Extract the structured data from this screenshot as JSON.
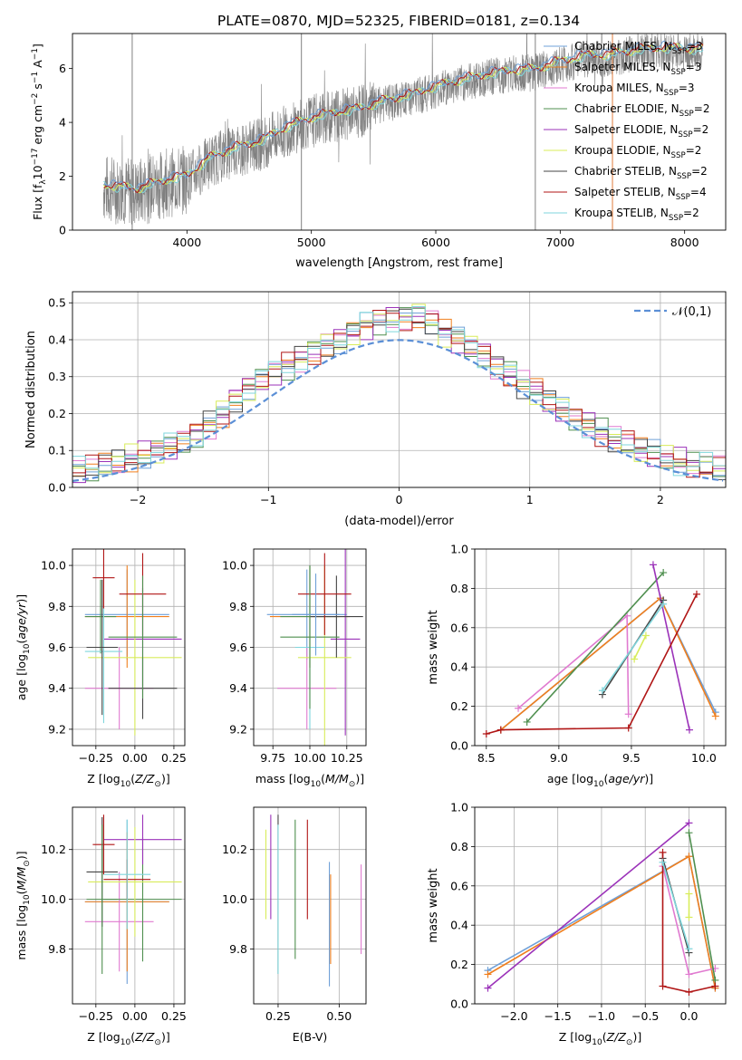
{
  "figure_title": "PLATE=0870, MJD=52325, FIBERID=0181, z=0.134",
  "colors": {
    "grid": "#b0b0b0",
    "data": "#808080",
    "gaussian": "#5b8fd6",
    "models": [
      "#6fa0d8",
      "#f07f1e",
      "#e07ad0",
      "#4f8f4f",
      "#9b32b9",
      "#d8ec5a",
      "#444444",
      "#b01515",
      "#7fd6dc"
    ]
  },
  "chart_data": [
    {
      "id": "spectrum",
      "type": "line",
      "title": "PLATE=0870, MJD=52325, FIBERID=0181, z=0.134",
      "xlabel": "wavelength [Angstrom, rest frame]",
      "ylabel_parts": [
        "Flux [f",
        "λ",
        "10",
        "−17",
        " erg cm",
        "−2",
        " s",
        "−1",
        " A",
        "−1",
        "]"
      ],
      "xlim": [
        3080,
        8330
      ],
      "ylim": [
        0,
        7.3
      ],
      "xticks": [
        4000,
        5000,
        6000,
        7000,
        8000
      ],
      "yticks": [
        0,
        2,
        4,
        6
      ],
      "grid": false,
      "legend_position": "upper-right",
      "legend": [
        {
          "text_a": "Chabrier MILES, N",
          "sub": "SSP",
          "text_b": "=3",
          "color_index": 0
        },
        {
          "text_a": "Salpeter MILES, N",
          "sub": "SSP",
          "text_b": "=3",
          "color_index": 1
        },
        {
          "text_a": "Kroupa MILES, N",
          "sub": "SSP",
          "text_b": "=3",
          "color_index": 2
        },
        {
          "text_a": "Chabrier ELODIE, N",
          "sub": "SSP",
          "text_b": "=2",
          "color_index": 3
        },
        {
          "text_a": "Salpeter ELODIE, N",
          "sub": "SSP",
          "text_b": "=2",
          "color_index": 4
        },
        {
          "text_a": "Kroupa ELODIE, N",
          "sub": "SSP",
          "text_b": "=2",
          "color_index": 5
        },
        {
          "text_a": "Chabrier STELIB, N",
          "sub": "SSP",
          "text_b": "=2",
          "color_index": 6
        },
        {
          "text_a": "Salpeter STELIB, N",
          "sub": "SSP",
          "text_b": "=4",
          "color_index": 7
        },
        {
          "text_a": "Kroupa STELIB, N",
          "sub": "SSP",
          "text_b": "=2",
          "color_index": 8
        }
      ],
      "observed_range": [
        3330,
        8150
      ],
      "model_continuum": [
        [
          3330,
          1.7
        ],
        [
          3600,
          1.55
        ],
        [
          3800,
          1.85
        ],
        [
          4000,
          2.05
        ],
        [
          4100,
          2.4
        ],
        [
          4200,
          2.75
        ],
        [
          4400,
          3.1
        ],
        [
          4600,
          3.35
        ],
        [
          4800,
          3.85
        ],
        [
          5000,
          4.2
        ],
        [
          5200,
          4.4
        ],
        [
          5400,
          4.55
        ],
        [
          5600,
          4.85
        ],
        [
          5800,
          5.05
        ],
        [
          6000,
          5.35
        ],
        [
          6200,
          5.6
        ],
        [
          6400,
          5.8
        ],
        [
          6600,
          5.95
        ],
        [
          6800,
          6.0
        ],
        [
          7000,
          6.3
        ],
        [
          7200,
          6.5
        ],
        [
          7400,
          6.55
        ],
        [
          7600,
          6.7
        ],
        [
          7800,
          6.8
        ],
        [
          8100,
          6.75
        ]
      ]
    },
    {
      "id": "residuals",
      "type": "step",
      "xlabel": "(data-model)/error",
      "ylabel": "Normed distribution",
      "xlim": [
        -2.5,
        2.5
      ],
      "ylim": [
        0,
        0.53
      ],
      "xticks": [
        -2,
        -1,
        0,
        1,
        2
      ],
      "yticks": [
        0.0,
        0.1,
        0.2,
        0.3,
        0.4,
        0.5
      ],
      "grid": true,
      "legend_position": "upper-right",
      "legend_label": "𝒩(0,1)",
      "bin_width": 0.1,
      "base_histogram": [
        0.03,
        0.03,
        0.03,
        0.035,
        0.04,
        0.045,
        0.05,
        0.06,
        0.07,
        0.08,
        0.09,
        0.1,
        0.11,
        0.12,
        0.14,
        0.17,
        0.2,
        0.24,
        0.27,
        0.29,
        0.31,
        0.33,
        0.35,
        0.37,
        0.39,
        0.4,
        0.42,
        0.44,
        0.45,
        0.46,
        0.46,
        0.47,
        0.45,
        0.42,
        0.4,
        0.38,
        0.36,
        0.33,
        0.31,
        0.28,
        0.26,
        0.23,
        0.21,
        0.19,
        0.17,
        0.15,
        0.13,
        0.12,
        0.1,
        0.09,
        0.08,
        0.07,
        0.06,
        0.06,
        0.05,
        0.04,
        0.04,
        0.03,
        0.03,
        0.02
      ]
    },
    {
      "id": "age-vs-Z",
      "type": "errorbar",
      "xlabel": "Z [log10(Z/Z☉)]",
      "ylabel": "age  [log10(age/yr)]",
      "xlim": [
        -0.4,
        0.32
      ],
      "ylim": [
        9.12,
        10.08
      ],
      "xticks": [
        -0.25,
        0.0,
        0.25
      ],
      "yticks": [
        9.2,
        9.4,
        9.6,
        9.8,
        10.0
      ],
      "grid": true,
      "points": [
        {
          "x": -0.05,
          "y": 9.76,
          "xerr": 0.27,
          "yerr": 0.22,
          "c": 0
        },
        {
          "x": -0.05,
          "y": 9.75,
          "xerr": 0.27,
          "yerr": 0.25,
          "c": 1
        },
        {
          "x": -0.1,
          "y": 9.4,
          "xerr": 0.22,
          "yerr": 0.2,
          "c": 2
        },
        {
          "x": -0.22,
          "y": 9.75,
          "xerr": 0.1,
          "yerr": 0.18,
          "c": 3
        },
        {
          "x": 0.05,
          "y": 9.64,
          "xerr": 0.25,
          "yerr": 0.25,
          "c": 4
        },
        {
          "x": 0.0,
          "y": 9.55,
          "xerr": 0.3,
          "yerr": 0.38,
          "c": 5
        },
        {
          "x": 0.05,
          "y": 9.4,
          "xerr": 0.22,
          "yerr": 0.15,
          "c": 6
        },
        {
          "x": 0.05,
          "y": 9.86,
          "xerr": 0.15,
          "yerr": 0.2,
          "c": 7
        },
        {
          "x": -0.2,
          "y": 9.58,
          "xerr": 0.12,
          "yerr": 0.35,
          "c": 8
        },
        {
          "x": -0.2,
          "y": 9.94,
          "xerr": 0.07,
          "yerr": 0.15,
          "c": 7
        },
        {
          "x": -0.21,
          "y": 9.6,
          "xerr": 0.1,
          "yerr": 0.33,
          "c": 6
        },
        {
          "x": 0.05,
          "y": 9.65,
          "xerr": 0.22,
          "yerr": 0.3,
          "c": 3
        }
      ]
    },
    {
      "id": "age-vs-mass",
      "type": "errorbar",
      "xlabel": "mass [log10(M/M☉)]",
      "ylabel": "",
      "xlim": [
        9.62,
        10.38
      ],
      "ylim": [
        9.12,
        10.08
      ],
      "xticks": [
        9.75,
        10.0,
        10.25
      ],
      "yticks": [
        9.2,
        9.4,
        9.6,
        9.8,
        10.0
      ],
      "grid": true,
      "points": [
        {
          "x": 9.98,
          "y": 9.76,
          "xerr": 0.27,
          "yerr": 0.22,
          "c": 0
        },
        {
          "x": 10.0,
          "y": 9.75,
          "xerr": 0.27,
          "yerr": 0.25,
          "c": 1
        },
        {
          "x": 9.98,
          "y": 9.4,
          "xerr": 0.2,
          "yerr": 0.2,
          "c": 2
        },
        {
          "x": 10.0,
          "y": 9.75,
          "xerr": 0.2,
          "yerr": 0.25,
          "c": 3
        },
        {
          "x": 10.24,
          "y": 9.64,
          "xerr": 0.1,
          "yerr": 0.47,
          "c": 4
        },
        {
          "x": 10.1,
          "y": 9.55,
          "xerr": 0.18,
          "yerr": 0.45,
          "c": 5
        },
        {
          "x": 10.18,
          "y": 9.75,
          "xerr": 0.18,
          "yerr": 0.2,
          "c": 6
        },
        {
          "x": 10.1,
          "y": 9.86,
          "xerr": 0.18,
          "yerr": 0.2,
          "c": 7
        },
        {
          "x": 10.0,
          "y": 9.6,
          "xerr": 0.1,
          "yerr": 0.4,
          "c": 8
        },
        {
          "x": 10.0,
          "y": 9.65,
          "xerr": 0.2,
          "yerr": 0.35,
          "c": 3
        },
        {
          "x": 10.04,
          "y": 9.76,
          "xerr": 0.16,
          "yerr": 0.2,
          "c": 0
        }
      ]
    },
    {
      "id": "weight-vs-age",
      "type": "line",
      "xlabel": "age  [log10(age/yr)]",
      "ylabel": "mass weight",
      "xlim": [
        8.42,
        10.15
      ],
      "ylim": [
        0,
        1.0
      ],
      "xticks": [
        8.5,
        9.0,
        9.5,
        10.0
      ],
      "yticks": [
        0.0,
        0.2,
        0.4,
        0.6,
        0.8,
        1.0
      ],
      "grid": true,
      "series": [
        {
          "c": 0,
          "points": [
            [
              8.6,
              0.08
            ],
            [
              9.7,
              0.75
            ],
            [
              10.08,
              0.17
            ]
          ]
        },
        {
          "c": 1,
          "points": [
            [
              8.6,
              0.08
            ],
            [
              9.7,
              0.75
            ],
            [
              10.08,
              0.15
            ]
          ]
        },
        {
          "c": 2,
          "points": [
            [
              8.72,
              0.19
            ],
            [
              9.47,
              0.66
            ],
            [
              9.48,
              0.16
            ]
          ]
        },
        {
          "c": 3,
          "points": [
            [
              8.78,
              0.12
            ],
            [
              9.72,
              0.88
            ]
          ]
        },
        {
          "c": 4,
          "points": [
            [
              9.65,
              0.92
            ],
            [
              9.9,
              0.08
            ]
          ]
        },
        {
          "c": 5,
          "points": [
            [
              9.52,
              0.44
            ],
            [
              9.6,
              0.56
            ]
          ]
        },
        {
          "c": 6,
          "points": [
            [
              9.3,
              0.26
            ],
            [
              9.72,
              0.74
            ]
          ]
        },
        {
          "c": 7,
          "points": [
            [
              8.5,
              0.06
            ],
            [
              8.6,
              0.08
            ],
            [
              9.48,
              0.09
            ],
            [
              9.95,
              0.77
            ]
          ]
        },
        {
          "c": 8,
          "points": [
            [
              9.3,
              0.28
            ],
            [
              9.72,
              0.72
            ]
          ]
        }
      ]
    },
    {
      "id": "mass-vs-Z",
      "type": "errorbar",
      "xlabel": "Z [log10(Z/Z☉)]",
      "ylabel": "mass [log10(M/M☉)]",
      "xlim": [
        -0.4,
        0.32
      ],
      "ylim": [
        9.58,
        10.37
      ],
      "xticks": [
        -0.25,
        0.0,
        0.25
      ],
      "yticks": [
        9.8,
        10.0,
        10.2
      ],
      "grid": true,
      "points": [
        {
          "x": -0.05,
          "y": 9.99,
          "xerr": 0.27,
          "yerr": 0.33,
          "c": 0
        },
        {
          "x": -0.05,
          "y": 9.99,
          "xerr": 0.27,
          "yerr": 0.28,
          "c": 1
        },
        {
          "x": -0.1,
          "y": 9.91,
          "xerr": 0.22,
          "yerr": 0.2,
          "c": 2
        },
        {
          "x": 0.05,
          "y": 10.0,
          "xerr": 0.25,
          "yerr": 0.25,
          "c": 3
        },
        {
          "x": 0.05,
          "y": 10.24,
          "xerr": 0.25,
          "yerr": 0.1,
          "c": 4
        },
        {
          "x": 0.0,
          "y": 10.07,
          "xerr": 0.3,
          "yerr": 0.22,
          "c": 5
        },
        {
          "x": -0.21,
          "y": 10.11,
          "xerr": 0.1,
          "yerr": 0.22,
          "c": 6
        },
        {
          "x": -0.05,
          "y": 10.08,
          "xerr": 0.15,
          "yerr": 0.08,
          "c": 7
        },
        {
          "x": -0.05,
          "y": 10.1,
          "xerr": 0.15,
          "yerr": 0.22,
          "c": 8
        },
        {
          "x": -0.2,
          "y": 10.22,
          "xerr": 0.07,
          "yerr": 0.12,
          "c": 7
        },
        {
          "x": -0.21,
          "y": 10.0,
          "xerr": 0.1,
          "yerr": 0.3,
          "c": 3
        }
      ]
    },
    {
      "id": "mass-vs-EBV",
      "type": "errorbar",
      "xlabel": "E(B-V)",
      "ylabel": "",
      "xlim": [
        0.15,
        0.61
      ],
      "ylim": [
        9.58,
        10.37
      ],
      "xticks": [
        0.25,
        0.5
      ],
      "yticks": [
        9.8,
        10.0,
        10.2
      ],
      "grid": true,
      "points": [
        {
          "x": 0.2,
          "y": 10.1,
          "xerr": 0,
          "yerr": 0.18,
          "c": 5
        },
        {
          "x": 0.22,
          "y": 10.13,
          "xerr": 0,
          "yerr": 0.21,
          "c": 4
        },
        {
          "x": 0.25,
          "y": 10.02,
          "xerr": 0,
          "yerr": 0.32,
          "c": 6
        },
        {
          "x": 0.25,
          "y": 10.0,
          "xerr": 0,
          "yerr": 0.3,
          "c": 8
        },
        {
          "x": 0.32,
          "y": 10.04,
          "xerr": 0,
          "yerr": 0.28,
          "c": 3
        },
        {
          "x": 0.37,
          "y": 10.12,
          "xerr": 0,
          "yerr": 0.2,
          "c": 7
        },
        {
          "x": 0.46,
          "y": 9.9,
          "xerr": 0,
          "yerr": 0.25,
          "c": 0
        },
        {
          "x": 0.465,
          "y": 9.92,
          "xerr": 0,
          "yerr": 0.18,
          "c": 1
        },
        {
          "x": 0.59,
          "y": 9.96,
          "xerr": 0,
          "yerr": 0.18,
          "c": 2
        }
      ]
    },
    {
      "id": "weight-vs-Z",
      "type": "line",
      "xlabel": "Z [log10(Z/Z☉)]",
      "ylabel": "mass weight",
      "xlim": [
        -2.45,
        0.42
      ],
      "ylim": [
        0,
        1.0
      ],
      "xticks": [
        -2.0,
        -1.5,
        -1.0,
        -0.5,
        0.0
      ],
      "yticks": [
        0.0,
        0.2,
        0.4,
        0.6,
        0.8,
        1.0
      ],
      "grid": true,
      "series": [
        {
          "c": 0,
          "points": [
            [
              -2.3,
              0.17
            ],
            [
              0.0,
              0.75
            ],
            [
              0.3,
              0.08
            ]
          ]
        },
        {
          "c": 1,
          "points": [
            [
              -2.3,
              0.15
            ],
            [
              0.0,
              0.75
            ],
            [
              0.3,
              0.08
            ]
          ]
        },
        {
          "c": 2,
          "points": [
            [
              -0.3,
              0.7
            ],
            [
              0.0,
              0.15
            ],
            [
              0.3,
              0.18
            ]
          ]
        },
        {
          "c": 3,
          "points": [
            [
              0.0,
              0.87
            ],
            [
              0.3,
              0.12
            ]
          ]
        },
        {
          "c": 4,
          "points": [
            [
              -2.3,
              0.08
            ],
            [
              0.0,
              0.92
            ]
          ]
        },
        {
          "c": 5,
          "points": [
            [
              0.0,
              0.44
            ],
            [
              0.0,
              0.56
            ]
          ]
        },
        {
          "c": 6,
          "points": [
            [
              -0.3,
              0.74
            ],
            [
              0.0,
              0.26
            ]
          ]
        },
        {
          "c": 7,
          "points": [
            [
              -0.3,
              0.77
            ],
            [
              -0.3,
              0.09
            ],
            [
              0.0,
              0.06
            ],
            [
              0.3,
              0.09
            ]
          ]
        },
        {
          "c": 8,
          "points": [
            [
              -0.3,
              0.72
            ],
            [
              0.0,
              0.28
            ]
          ]
        }
      ]
    }
  ]
}
